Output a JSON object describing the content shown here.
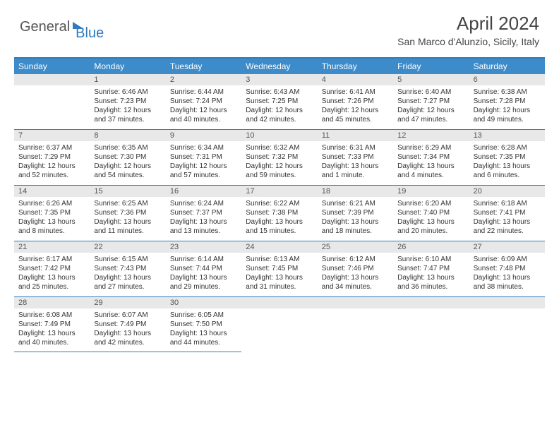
{
  "logo": {
    "part1": "General",
    "part2": "Blue"
  },
  "title": "April 2024",
  "location": "San Marco d'Alunzio, Sicily, Italy",
  "day_headers": [
    "Sunday",
    "Monday",
    "Tuesday",
    "Wednesday",
    "Thursday",
    "Friday",
    "Saturday"
  ],
  "colors": {
    "header_blue": "#3d8bc9",
    "border_blue": "#2f7bbf",
    "date_bg": "#e8e8e8",
    "text": "#333333"
  },
  "weeks": [
    [
      {
        "date": "",
        "lines": []
      },
      {
        "date": "1",
        "lines": [
          "Sunrise: 6:46 AM",
          "Sunset: 7:23 PM",
          "Daylight: 12 hours",
          "and 37 minutes."
        ]
      },
      {
        "date": "2",
        "lines": [
          "Sunrise: 6:44 AM",
          "Sunset: 7:24 PM",
          "Daylight: 12 hours",
          "and 40 minutes."
        ]
      },
      {
        "date": "3",
        "lines": [
          "Sunrise: 6:43 AM",
          "Sunset: 7:25 PM",
          "Daylight: 12 hours",
          "and 42 minutes."
        ]
      },
      {
        "date": "4",
        "lines": [
          "Sunrise: 6:41 AM",
          "Sunset: 7:26 PM",
          "Daylight: 12 hours",
          "and 45 minutes."
        ]
      },
      {
        "date": "5",
        "lines": [
          "Sunrise: 6:40 AM",
          "Sunset: 7:27 PM",
          "Daylight: 12 hours",
          "and 47 minutes."
        ]
      },
      {
        "date": "6",
        "lines": [
          "Sunrise: 6:38 AM",
          "Sunset: 7:28 PM",
          "Daylight: 12 hours",
          "and 49 minutes."
        ]
      }
    ],
    [
      {
        "date": "7",
        "lines": [
          "Sunrise: 6:37 AM",
          "Sunset: 7:29 PM",
          "Daylight: 12 hours",
          "and 52 minutes."
        ]
      },
      {
        "date": "8",
        "lines": [
          "Sunrise: 6:35 AM",
          "Sunset: 7:30 PM",
          "Daylight: 12 hours",
          "and 54 minutes."
        ]
      },
      {
        "date": "9",
        "lines": [
          "Sunrise: 6:34 AM",
          "Sunset: 7:31 PM",
          "Daylight: 12 hours",
          "and 57 minutes."
        ]
      },
      {
        "date": "10",
        "lines": [
          "Sunrise: 6:32 AM",
          "Sunset: 7:32 PM",
          "Daylight: 12 hours",
          "and 59 minutes."
        ]
      },
      {
        "date": "11",
        "lines": [
          "Sunrise: 6:31 AM",
          "Sunset: 7:33 PM",
          "Daylight: 13 hours",
          "and 1 minute."
        ]
      },
      {
        "date": "12",
        "lines": [
          "Sunrise: 6:29 AM",
          "Sunset: 7:34 PM",
          "Daylight: 13 hours",
          "and 4 minutes."
        ]
      },
      {
        "date": "13",
        "lines": [
          "Sunrise: 6:28 AM",
          "Sunset: 7:35 PM",
          "Daylight: 13 hours",
          "and 6 minutes."
        ]
      }
    ],
    [
      {
        "date": "14",
        "lines": [
          "Sunrise: 6:26 AM",
          "Sunset: 7:35 PM",
          "Daylight: 13 hours",
          "and 8 minutes."
        ]
      },
      {
        "date": "15",
        "lines": [
          "Sunrise: 6:25 AM",
          "Sunset: 7:36 PM",
          "Daylight: 13 hours",
          "and 11 minutes."
        ]
      },
      {
        "date": "16",
        "lines": [
          "Sunrise: 6:24 AM",
          "Sunset: 7:37 PM",
          "Daylight: 13 hours",
          "and 13 minutes."
        ]
      },
      {
        "date": "17",
        "lines": [
          "Sunrise: 6:22 AM",
          "Sunset: 7:38 PM",
          "Daylight: 13 hours",
          "and 15 minutes."
        ]
      },
      {
        "date": "18",
        "lines": [
          "Sunrise: 6:21 AM",
          "Sunset: 7:39 PM",
          "Daylight: 13 hours",
          "and 18 minutes."
        ]
      },
      {
        "date": "19",
        "lines": [
          "Sunrise: 6:20 AM",
          "Sunset: 7:40 PM",
          "Daylight: 13 hours",
          "and 20 minutes."
        ]
      },
      {
        "date": "20",
        "lines": [
          "Sunrise: 6:18 AM",
          "Sunset: 7:41 PM",
          "Daylight: 13 hours",
          "and 22 minutes."
        ]
      }
    ],
    [
      {
        "date": "21",
        "lines": [
          "Sunrise: 6:17 AM",
          "Sunset: 7:42 PM",
          "Daylight: 13 hours",
          "and 25 minutes."
        ]
      },
      {
        "date": "22",
        "lines": [
          "Sunrise: 6:15 AM",
          "Sunset: 7:43 PM",
          "Daylight: 13 hours",
          "and 27 minutes."
        ]
      },
      {
        "date": "23",
        "lines": [
          "Sunrise: 6:14 AM",
          "Sunset: 7:44 PM",
          "Daylight: 13 hours",
          "and 29 minutes."
        ]
      },
      {
        "date": "24",
        "lines": [
          "Sunrise: 6:13 AM",
          "Sunset: 7:45 PM",
          "Daylight: 13 hours",
          "and 31 minutes."
        ]
      },
      {
        "date": "25",
        "lines": [
          "Sunrise: 6:12 AM",
          "Sunset: 7:46 PM",
          "Daylight: 13 hours",
          "and 34 minutes."
        ]
      },
      {
        "date": "26",
        "lines": [
          "Sunrise: 6:10 AM",
          "Sunset: 7:47 PM",
          "Daylight: 13 hours",
          "and 36 minutes."
        ]
      },
      {
        "date": "27",
        "lines": [
          "Sunrise: 6:09 AM",
          "Sunset: 7:48 PM",
          "Daylight: 13 hours",
          "and 38 minutes."
        ]
      }
    ],
    [
      {
        "date": "28",
        "lines": [
          "Sunrise: 6:08 AM",
          "Sunset: 7:49 PM",
          "Daylight: 13 hours",
          "and 40 minutes."
        ]
      },
      {
        "date": "29",
        "lines": [
          "Sunrise: 6:07 AM",
          "Sunset: 7:49 PM",
          "Daylight: 13 hours",
          "and 42 minutes."
        ]
      },
      {
        "date": "30",
        "lines": [
          "Sunrise: 6:05 AM",
          "Sunset: 7:50 PM",
          "Daylight: 13 hours",
          "and 44 minutes."
        ]
      },
      {
        "date": "",
        "lines": []
      },
      {
        "date": "",
        "lines": []
      },
      {
        "date": "",
        "lines": []
      },
      {
        "date": "",
        "lines": []
      }
    ]
  ]
}
